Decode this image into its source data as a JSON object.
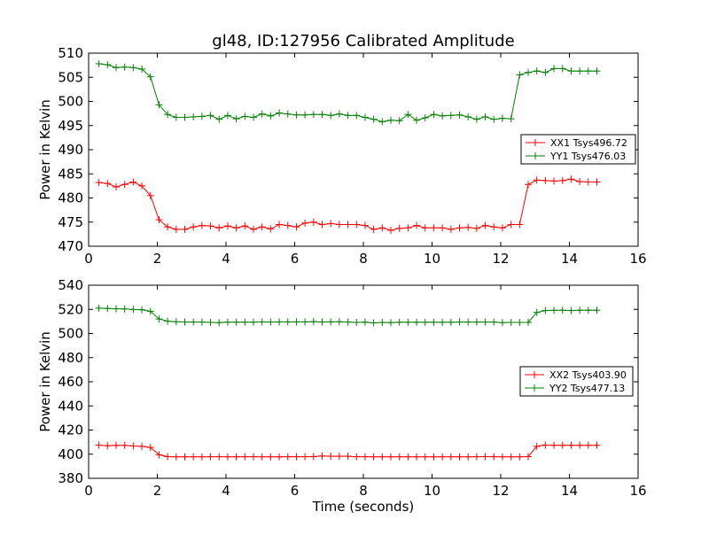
{
  "chart_data": [
    {
      "type": "line",
      "title": "gl48, ID:127956 Calibrated Amplitude",
      "xlabel": "",
      "ylabel": "Power in Kelvin",
      "xlim": [
        0,
        16
      ],
      "ylim": [
        470,
        510
      ],
      "xticks": [
        "0",
        "2",
        "4",
        "6",
        "8",
        "10",
        "12",
        "14",
        "16"
      ],
      "yticks": [
        "470",
        "475",
        "480",
        "485",
        "490",
        "495",
        "500",
        "505",
        "510"
      ],
      "legend_position": "right",
      "x": [
        0.3,
        0.55,
        0.8,
        1.05,
        1.3,
        1.55,
        1.8,
        2.05,
        2.3,
        2.55,
        2.8,
        3.05,
        3.3,
        3.55,
        3.8,
        4.05,
        4.3,
        4.55,
        4.8,
        5.05,
        5.3,
        5.55,
        5.8,
        6.05,
        6.3,
        6.55,
        6.8,
        7.05,
        7.3,
        7.55,
        7.8,
        8.05,
        8.3,
        8.55,
        8.8,
        9.05,
        9.3,
        9.55,
        9.8,
        10.05,
        10.3,
        10.55,
        10.8,
        11.05,
        11.3,
        11.55,
        11.8,
        12.05,
        12.3,
        12.55,
        12.8,
        13.05,
        13.3,
        13.55,
        13.8,
        14.05,
        14.3,
        14.55,
        14.8
      ],
      "series": [
        {
          "name": "XX1 Tsys496.72",
          "color": "#ff0000",
          "values": [
            483.2,
            483.0,
            482.3,
            482.8,
            483.3,
            482.5,
            480.5,
            475.5,
            474.0,
            473.5,
            473.5,
            474.0,
            474.3,
            474.2,
            473.8,
            474.2,
            473.8,
            474.2,
            473.5,
            474.0,
            473.6,
            474.5,
            474.3,
            474.0,
            474.8,
            475.0,
            474.5,
            474.7,
            474.5,
            474.5,
            474.5,
            474.3,
            473.5,
            473.8,
            473.3,
            473.7,
            473.8,
            474.3,
            473.8,
            473.8,
            473.8,
            473.5,
            473.8,
            473.9,
            473.7,
            474.3,
            474.0,
            473.8,
            474.5,
            474.5,
            482.8,
            483.7,
            483.6,
            483.5,
            483.6,
            483.9,
            483.4,
            483.3,
            483.3
          ]
        },
        {
          "name": "YY1 Tsys476.03",
          "color": "#008000",
          "values": [
            507.8,
            507.6,
            507.0,
            507.1,
            507.0,
            506.7,
            505.1,
            499.3,
            497.3,
            496.7,
            496.7,
            496.8,
            496.9,
            497.1,
            496.3,
            497.1,
            496.4,
            496.9,
            496.7,
            497.4,
            497.0,
            497.6,
            497.4,
            497.2,
            497.2,
            497.3,
            497.3,
            497.1,
            497.4,
            497.1,
            497.1,
            496.7,
            496.3,
            495.8,
            496.1,
            496.0,
            497.3,
            496.1,
            496.6,
            497.3,
            497.0,
            497.1,
            497.2,
            496.8,
            496.3,
            496.8,
            496.3,
            496.5,
            496.4,
            505.5,
            506.0,
            506.3,
            506.0,
            506.8,
            506.8,
            506.3,
            506.3,
            506.3,
            506.3
          ]
        }
      ]
    },
    {
      "type": "line",
      "title": "",
      "xlabel": "Time (seconds)",
      "ylabel": "Power in Kelvin",
      "xlim": [
        0,
        16
      ],
      "ylim": [
        380,
        540
      ],
      "xticks": [
        "0",
        "2",
        "4",
        "6",
        "8",
        "10",
        "12",
        "14",
        "16"
      ],
      "yticks": [
        "380",
        "400",
        "420",
        "440",
        "460",
        "480",
        "500",
        "520",
        "540"
      ],
      "legend_position": "right",
      "x": [
        0.3,
        0.55,
        0.8,
        1.05,
        1.3,
        1.55,
        1.8,
        2.05,
        2.3,
        2.55,
        2.8,
        3.05,
        3.3,
        3.55,
        3.8,
        4.05,
        4.3,
        4.55,
        4.8,
        5.05,
        5.3,
        5.55,
        5.8,
        6.05,
        6.3,
        6.55,
        6.8,
        7.05,
        7.3,
        7.55,
        7.8,
        8.05,
        8.3,
        8.55,
        8.8,
        9.05,
        9.3,
        9.55,
        9.8,
        10.05,
        10.3,
        10.55,
        10.8,
        11.05,
        11.3,
        11.55,
        11.8,
        12.05,
        12.3,
        12.55,
        12.8,
        13.05,
        13.3,
        13.55,
        13.8,
        14.05,
        14.3,
        14.55,
        14.8
      ],
      "series": [
        {
          "name": "XX2 Tsys403.90",
          "color": "#ff0000",
          "values": [
            407.5,
            407.0,
            407.3,
            407.3,
            406.8,
            406.5,
            405.6,
            399.5,
            398.0,
            397.8,
            397.8,
            397.8,
            397.8,
            397.9,
            397.9,
            397.8,
            397.8,
            397.9,
            397.9,
            397.8,
            397.8,
            397.8,
            397.9,
            397.9,
            397.9,
            398.0,
            398.5,
            398.3,
            398.3,
            398.3,
            397.9,
            397.9,
            397.8,
            397.8,
            397.8,
            397.8,
            397.8,
            397.8,
            397.8,
            397.8,
            397.8,
            397.8,
            397.8,
            397.8,
            397.9,
            398.0,
            397.9,
            397.8,
            397.8,
            397.8,
            398.0,
            406.5,
            407.5,
            407.4,
            407.4,
            407.4,
            407.4,
            407.4,
            407.4
          ]
        },
        {
          "name": "YY2 Tsys477.13",
          "color": "#008000",
          "values": [
            521.0,
            520.7,
            520.5,
            520.3,
            519.9,
            519.7,
            518.4,
            512.0,
            510.2,
            509.7,
            509.5,
            509.5,
            509.5,
            509.2,
            509.0,
            509.4,
            509.4,
            509.4,
            509.4,
            509.6,
            509.5,
            509.6,
            509.6,
            509.6,
            509.6,
            509.8,
            509.5,
            509.6,
            509.7,
            509.5,
            509.2,
            509.4,
            508.8,
            509.2,
            509.0,
            509.3,
            509.3,
            509.3,
            509.3,
            509.3,
            509.3,
            509.3,
            509.5,
            509.5,
            509.5,
            509.5,
            509.5,
            509.0,
            509.2,
            509.2,
            509.2,
            517.5,
            519.0,
            519.2,
            519.3,
            519.0,
            519.3,
            519.3,
            519.3
          ]
        }
      ]
    }
  ]
}
